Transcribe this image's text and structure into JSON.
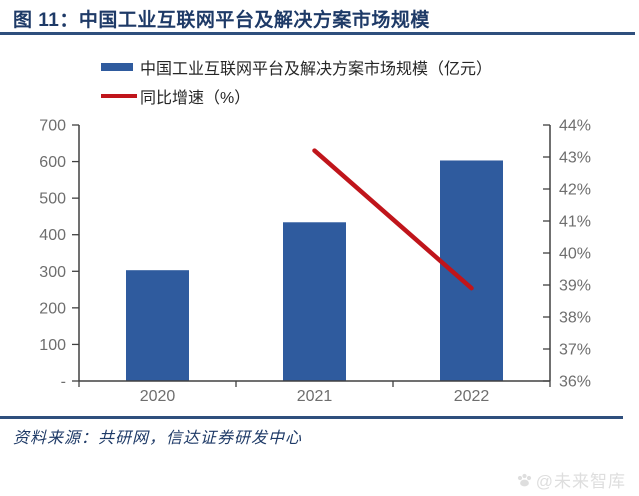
{
  "header": {
    "title": "图 11：中国工业互联网平台及解决方案市场规模"
  },
  "legend": {
    "bar_label": "中国工业互联网平台及解决方案市场规模（亿元）",
    "line_label": "同比增速（%）"
  },
  "footer": {
    "source": "资料来源：共研网，信达证券研发中心",
    "watermark": "@未来智库",
    "watermark_icon": "paw-icon"
  },
  "colors": {
    "bar": "#2f5b9e",
    "line": "#c0151b",
    "title": "#1e3a67",
    "rule": "#2f4f7d",
    "axis": "#404040",
    "tick_text": "#6e6e6e",
    "watermark": "#dedede"
  },
  "chart_data": {
    "type": "bar",
    "subtype": "combo-bar-line",
    "title": "中国工业互联网平台及解决方案市场规模",
    "categories": [
      "2020",
      "2021",
      "2022"
    ],
    "series": [
      {
        "name": "中国工业互联网平台及解决方案市场规模（亿元）",
        "type": "bar",
        "axis": "left",
        "values": [
          303,
          434,
          603
        ]
      },
      {
        "name": "同比增速（%）",
        "type": "line",
        "axis": "right",
        "values": [
          null,
          43.2,
          38.9
        ]
      }
    ],
    "left_axis": {
      "min": 0,
      "max": 700,
      "step": 100,
      "tick_labels": [
        "700",
        "600",
        "500",
        "400",
        "300",
        "200",
        "100",
        "-"
      ]
    },
    "right_axis": {
      "min": 36,
      "max": 44,
      "step": 1,
      "tick_labels": [
        "44%",
        "43%",
        "42%",
        "41%",
        "40%",
        "39%",
        "38%",
        "37%",
        "36%"
      ]
    },
    "grid": false,
    "legend_position": "top-left"
  }
}
